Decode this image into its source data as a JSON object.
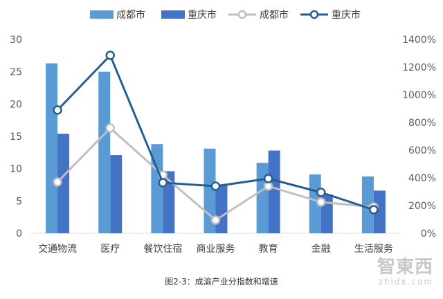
{
  "chart_data": {
    "type": "bar",
    "categories": [
      "交通物流",
      "医疗",
      "餐饮住宿",
      "商业服务",
      "教育",
      "金融",
      "生活服务"
    ],
    "series": [
      {
        "name": "成都市",
        "kind": "bar",
        "axis": "left",
        "color": "#5b9bd5",
        "values": [
          26.3,
          25.0,
          13.8,
          13.1,
          10.9,
          9.1,
          8.8
        ]
      },
      {
        "name": "重庆市",
        "kind": "bar",
        "axis": "left",
        "color": "#4472c4",
        "values": [
          15.4,
          12.1,
          9.6,
          7.5,
          12.8,
          6.0,
          6.6
        ]
      },
      {
        "name": "成都市",
        "kind": "line",
        "axis": "right",
        "color": "#bfbfbf",
        "values": [
          370,
          760,
          420,
          95,
          340,
          225,
          190
        ]
      },
      {
        "name": "重庆市",
        "kind": "line",
        "axis": "right",
        "color": "#255e91",
        "values": [
          890,
          1285,
          365,
          340,
          395,
          295,
          170
        ]
      }
    ],
    "y_left": {
      "min": 0,
      "max": 30,
      "ticks": [
        0,
        5,
        10,
        15,
        20,
        25,
        30
      ]
    },
    "y_right": {
      "min": 0,
      "max": 1400,
      "ticks": [
        "0%",
        "200%",
        "400%",
        "600%",
        "800%",
        "1000%",
        "1200%",
        "1400%"
      ]
    },
    "legend_position": "top",
    "grid": false,
    "caption": "图2-3：成渝产业分指数和增速"
  },
  "watermark": {
    "main": "智東西",
    "sub": "zhidx.com"
  }
}
